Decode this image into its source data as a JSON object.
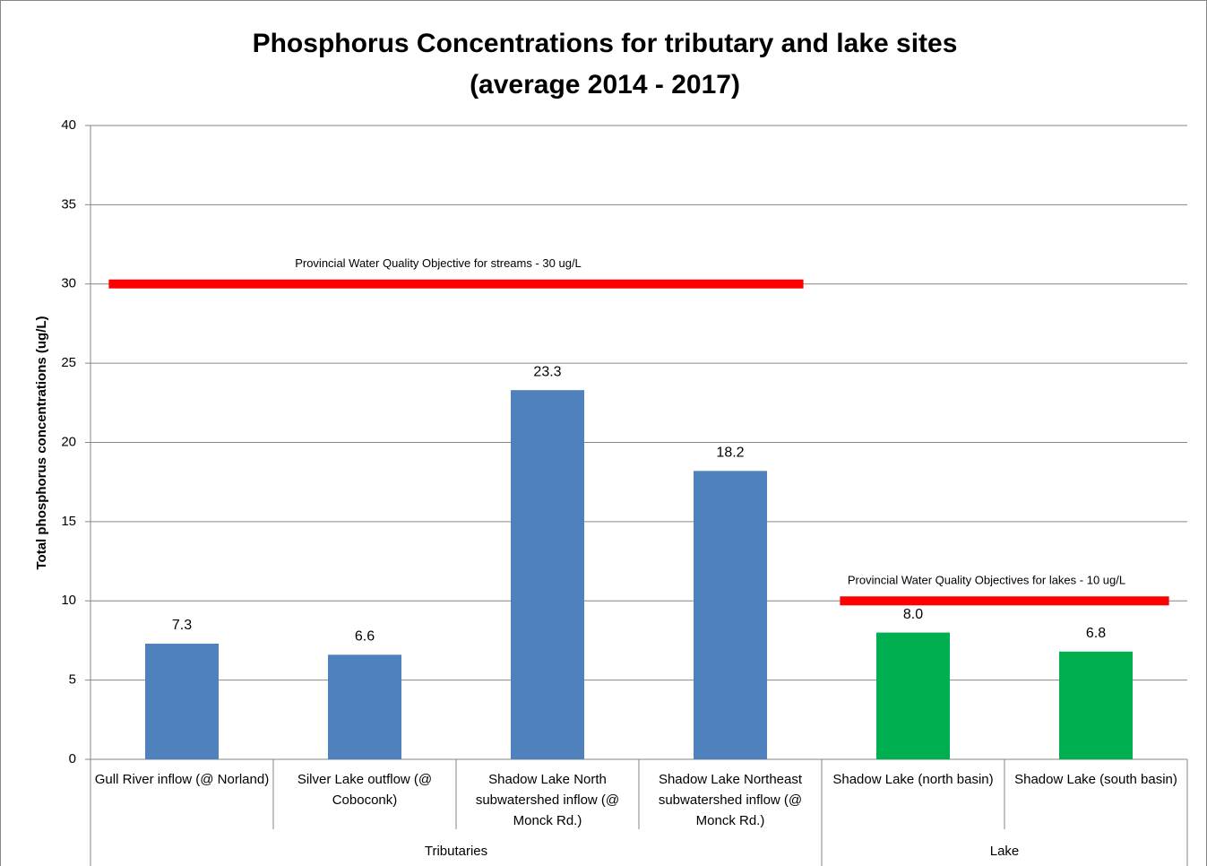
{
  "chart_data": {
    "type": "bar",
    "title": "Phosphorus Concentrations for tributary and lake sites",
    "subtitle": "(average 2014 - 2017)",
    "y_label": "Total phosphorus concentrations  (ug/L)",
    "categories": [
      "Gull River inflow (@ Norland)",
      "Silver Lake outflow (@ Coboconk)",
      "Shadow Lake North subwatershed inflow (@ Monck Rd.)",
      "Shadow Lake Northeast subwatershed inflow (@ Monck Rd.)",
      "Shadow Lake (north  basin)",
      "Shadow Lake (south basin)"
    ],
    "values": [
      7.3,
      6.6,
      23.3,
      18.2,
      8.0,
      6.8
    ],
    "value_labels": [
      "7.3",
      "6.6",
      "23.3",
      "18.2",
      "8.0",
      "6.8"
    ],
    "groups": [
      {
        "name": "Tributaries",
        "size": 4,
        "color": "#4f81bd",
        "threshold": {
          "value": 30,
          "label": "Provincial Water Quality Objective for streams - 30 ug/L",
          "color": "#ff0000"
        }
      },
      {
        "name": "Lake",
        "size": 2,
        "color": "#00b050",
        "threshold": {
          "value": 10,
          "label": "Provincial Water Quality Objectives for lakes - 10 ug/L",
          "color": "#ff0000"
        }
      }
    ],
    "ylim": [
      0,
      40
    ],
    "yticks": [
      0,
      5,
      10,
      15,
      20,
      25,
      30,
      35,
      40
    ],
    "grid": true
  }
}
